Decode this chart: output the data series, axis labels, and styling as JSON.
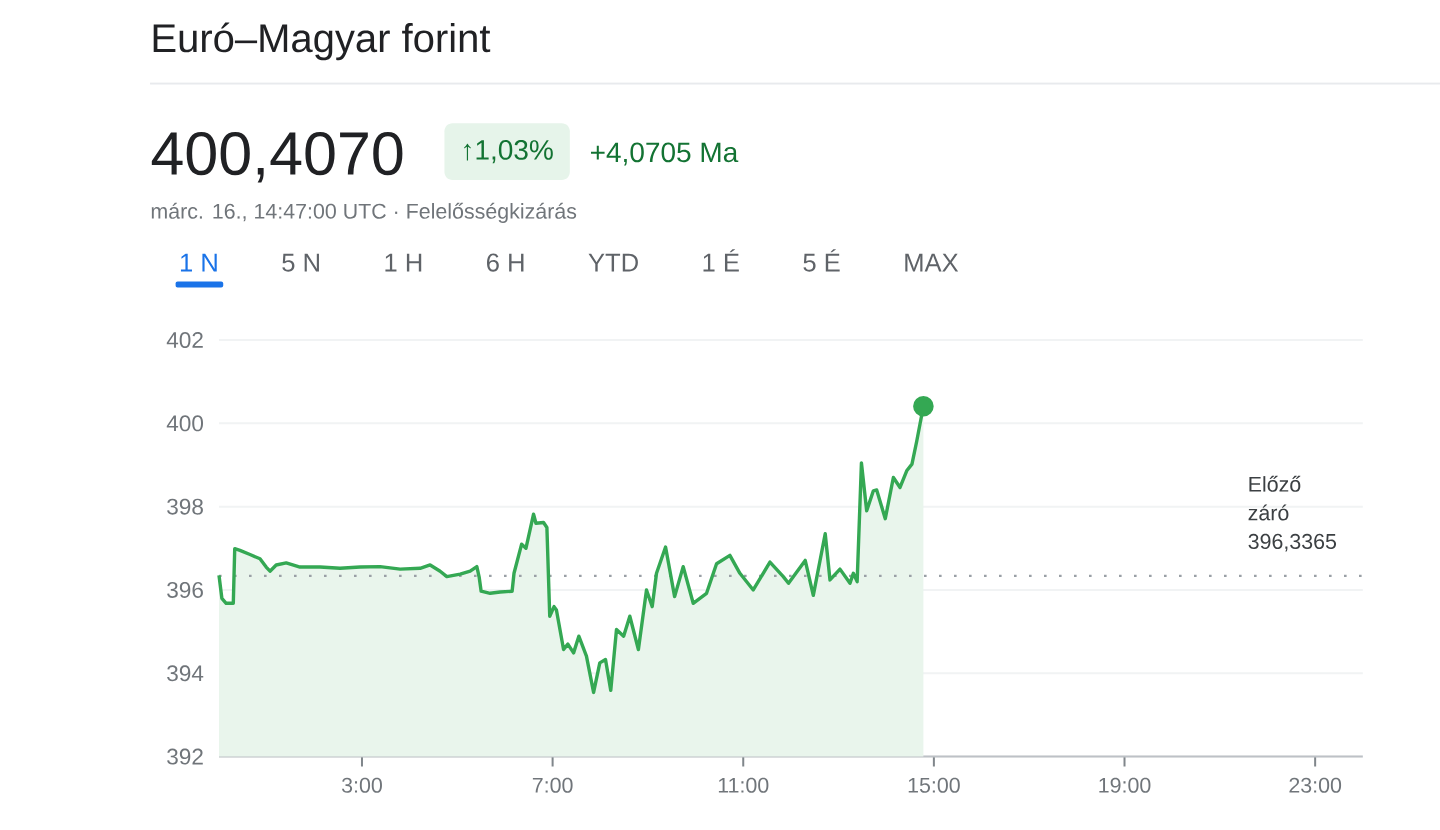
{
  "chart_data": {
    "type": "area",
    "title": "Euró–Magyar forint",
    "subtitle": "márc. 16., 14:47:00 UTC · Felelősségkizárás",
    "annotations": [
      "400,4070",
      "↑1,03%",
      "+4,0705 Ma",
      "1 N",
      "5 N",
      "1 H",
      "6 H",
      "YTD",
      "1 É",
      "5 É",
      "MAX"
    ],
    "x": [
      0.0,
      0.06,
      0.15,
      0.3,
      0.33,
      0.44,
      0.65,
      0.86,
      0.99,
      1.07,
      1.2,
      1.41,
      1.7,
      2.12,
      2.54,
      2.96,
      3.38,
      3.8,
      4.22,
      4.43,
      4.64,
      4.78,
      5.06,
      5.27,
      5.41,
      5.46,
      5.5,
      5.69,
      5.9,
      6.15,
      6.19,
      6.35,
      6.44,
      6.6,
      6.65,
      6.81,
      6.88,
      6.94,
      7.03,
      7.08,
      7.23,
      7.32,
      7.44,
      7.55,
      7.71,
      7.86,
      7.99,
      8.11,
      8.22,
      8.34,
      8.49,
      8.62,
      8.8,
      8.97,
      9.09,
      9.18,
      9.37,
      9.56,
      9.74,
      9.95,
      10.23,
      10.44,
      10.72,
      10.93,
      11.21,
      11.56,
      11.84,
      11.95,
      12.3,
      12.47,
      12.72,
      12.82,
      13.03,
      13.24,
      13.31,
      13.39,
      13.48,
      13.59,
      13.73,
      13.8,
      13.98,
      14.15,
      14.29,
      14.43,
      14.54,
      14.64,
      14.78
    ],
    "values": [
      396.35,
      395.8,
      395.68,
      395.68,
      396.99,
      396.95,
      396.85,
      396.75,
      396.55,
      396.45,
      396.6,
      396.65,
      396.55,
      396.55,
      396.52,
      396.55,
      396.56,
      396.5,
      396.52,
      396.6,
      396.45,
      396.32,
      396.38,
      396.45,
      396.56,
      396.3,
      395.97,
      395.92,
      395.95,
      395.97,
      396.4,
      397.1,
      397.0,
      397.82,
      397.6,
      397.62,
      397.5,
      395.37,
      395.6,
      395.52,
      394.57,
      394.7,
      394.49,
      394.89,
      394.41,
      393.54,
      394.25,
      394.33,
      393.59,
      395.05,
      394.89,
      395.37,
      394.57,
      396.0,
      395.6,
      396.4,
      397.03,
      395.84,
      396.56,
      395.68,
      395.92,
      396.63,
      396.83,
      396.4,
      396.0,
      396.67,
      396.32,
      396.16,
      396.71,
      395.87,
      397.35,
      396.24,
      396.5,
      396.16,
      396.4,
      396.2,
      399.05,
      397.9,
      398.38,
      398.4,
      397.71,
      398.7,
      398.46,
      398.86,
      399.02,
      399.57,
      400.41
    ],
    "color": "#34a853",
    "xlim": [
      0,
      24
    ],
    "xticks": [
      {
        "value": 3,
        "label": "3:00"
      },
      {
        "value": 7,
        "label": "7:00"
      },
      {
        "value": 11,
        "label": "11:00"
      },
      {
        "value": 15,
        "label": "15:00"
      },
      {
        "value": 19,
        "label": "19:00"
      },
      {
        "value": 23,
        "label": "23:00"
      }
    ],
    "ylim": [
      392,
      402
    ],
    "yticks": [
      392,
      394,
      396,
      398,
      400,
      402
    ],
    "grid": "y",
    "ref_lines": [
      {
        "axis": "y",
        "value": 396.3365,
        "label": "Előző záró 396,3365",
        "color": "#9aa0a6",
        "line_style": "dotted"
      }
    ]
  }
}
